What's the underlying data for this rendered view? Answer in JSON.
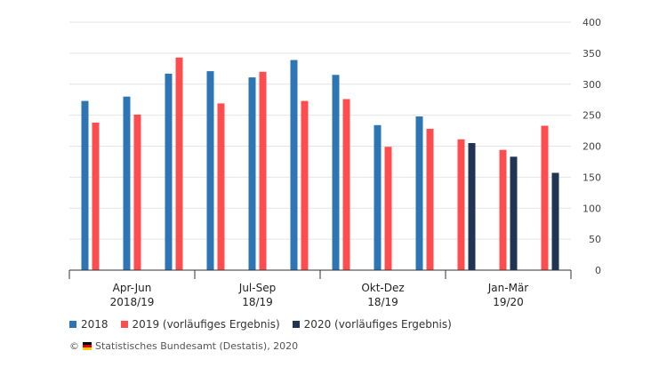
{
  "chart_data": {
    "type": "bar",
    "groups": [
      {
        "label": [
          "Apr-Jun",
          "2018/19"
        ],
        "months": 3
      },
      {
        "label": [
          "Jul-Sep",
          "18/19"
        ],
        "months": 3
      },
      {
        "label": [
          "Okt-Dez",
          "18/19"
        ],
        "months": 3
      },
      {
        "label": [
          "Jan-Mär",
          "19/20"
        ],
        "months": 3
      }
    ],
    "series": [
      {
        "name": "2018",
        "color": "#2e75b6",
        "values": [
          273,
          280,
          317,
          321,
          311,
          339,
          315,
          234,
          248,
          null,
          null,
          null
        ]
      },
      {
        "name": "2019 (vorläufiges Ergebnis)",
        "color": "#ff4d4f",
        "values": [
          238,
          251,
          343,
          269,
          320,
          273,
          276,
          199,
          228,
          211,
          194,
          233
        ]
      },
      {
        "name": "2020 (vorläufiges Ergebnis)",
        "color": "#1f3553",
        "values": [
          null,
          null,
          null,
          null,
          null,
          null,
          null,
          null,
          null,
          205,
          183,
          157
        ]
      }
    ],
    "ylim": [
      0,
      400
    ],
    "yticks": [
      0,
      50,
      100,
      150,
      200,
      250,
      300,
      350,
      400
    ],
    "y_axis_side": "right",
    "grid": true,
    "legend_position": "bottom-left"
  },
  "source": {
    "text": "Statistisches Bundesamt (Destatis), 2020",
    "icon": "destatis-flag-icon",
    "prefix_symbol": "©"
  }
}
